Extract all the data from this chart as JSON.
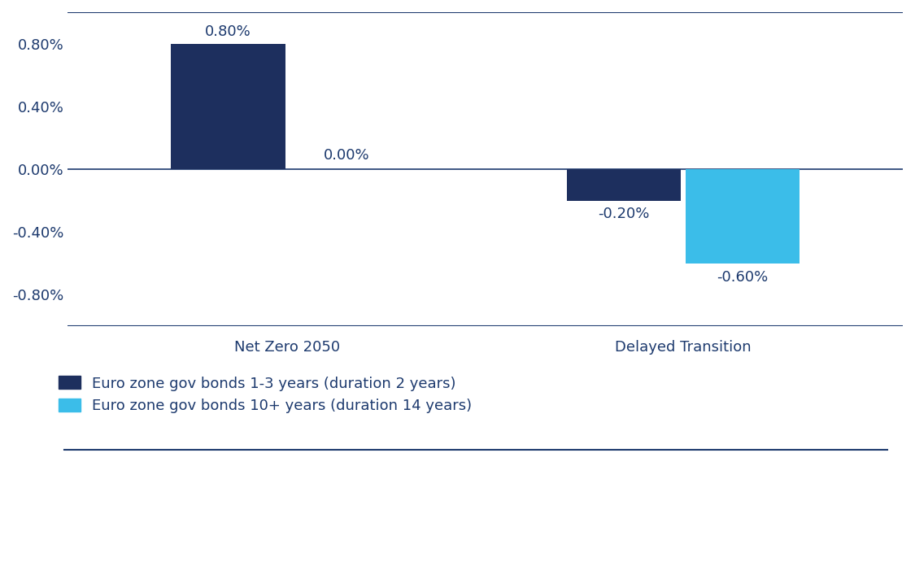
{
  "categories": [
    "Net Zero 2050",
    "Delayed Transition"
  ],
  "series": [
    {
      "name": "Euro zone gov bonds 1-3 years (duration 2 years)",
      "color": "#1d2f5e",
      "values": [
        0.8,
        -0.2
      ]
    },
    {
      "name": "Euro zone gov bonds 10+ years (duration 14 years)",
      "color": "#3bbde9",
      "values": [
        0.0,
        -0.6
      ]
    }
  ],
  "ylim": [
    -1.0,
    1.0
  ],
  "yticks": [
    -0.8,
    -0.4,
    0.0,
    0.4,
    0.8
  ],
  "yticklabels": [
    "-0.80%",
    "-0.40%",
    "0.00%",
    "0.40%",
    "0.80%"
  ],
  "background_color": "#ffffff",
  "axis_line_color": "#1d3a6e",
  "tick_label_color": "#1d3a6e",
  "label_color": "#1d3a6e",
  "bar_width": 0.13,
  "annotation_fontsize": 13,
  "tick_fontsize": 13,
  "legend_fontsize": 13,
  "category_fontsize": 13,
  "top_line_color": "#1d3a6e",
  "bottom_line_color": "#1d3a6e",
  "group_centers": [
    0.3,
    0.75
  ],
  "xlim": [
    0.05,
    1.0
  ],
  "bar_gap": 0.005
}
